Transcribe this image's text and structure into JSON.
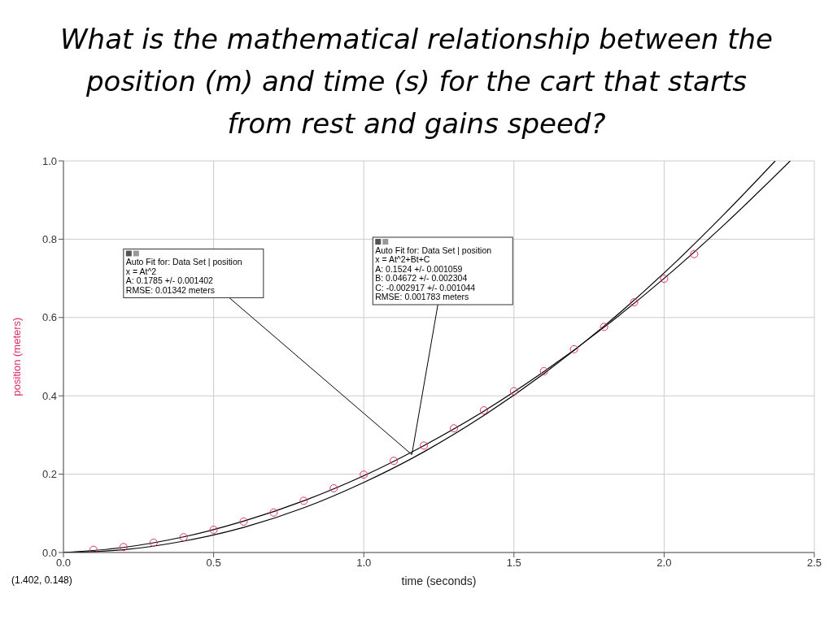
{
  "chart_data": {
    "type": "scatter",
    "title": "What is the mathematical relationship between the position (m) and time (s) for the cart that starts from rest and gains speed?",
    "xlabel": "time (seconds)",
    "ylabel": "position (meters)",
    "xlim": [
      0,
      2.5
    ],
    "xticks": [
      {
        "value": 0,
        "label": "0.0"
      },
      {
        "value": 0.5,
        "label": "0.5"
      },
      {
        "value": 1,
        "label": "1.0"
      },
      {
        "value": 1.5,
        "label": "1.5"
      },
      {
        "value": 2,
        "label": "2.0"
      },
      {
        "value": 2.5,
        "label": "2.5"
      }
    ],
    "ylim": [
      0,
      1
    ],
    "yticks": [
      {
        "value": 0,
        "label": "0.0"
      },
      {
        "value": 0.2,
        "label": "0.2"
      },
      {
        "value": 0.4,
        "label": "0.4"
      },
      {
        "value": 0.6,
        "label": "0.6"
      },
      {
        "value": 0.8,
        "label": "0.8"
      },
      {
        "value": 1,
        "label": "1.0"
      }
    ],
    "grid": true,
    "series": [
      {
        "color": "#e0306a",
        "marker": "circle",
        "x": [
          0.1,
          0.2,
          0.3,
          0.4,
          0.5,
          0.6,
          0.7,
          0.8,
          0.9,
          1.0,
          1.1,
          1.2,
          1.3,
          1.4,
          1.5,
          1.6,
          1.7,
          1.8,
          1.9,
          2.0,
          2.1
        ],
        "values": [
          0.007,
          0.014,
          0.025,
          0.039,
          0.058,
          0.079,
          0.102,
          0.132,
          0.164,
          0.199,
          0.234,
          0.273,
          0.317,
          0.363,
          0.412,
          0.463,
          0.519,
          0.576,
          0.639,
          0.699,
          0.762
        ]
      },
      {
        "type": "line",
        "color": "#000000",
        "marker": "none",
        "x": [
          0,
          0.2,
          0.4,
          0.6,
          0.8,
          1.0,
          1.2,
          1.4,
          1.6,
          1.8,
          2.0,
          2.2,
          2.37
        ],
        "values": [
          0,
          0.007,
          0.029,
          0.064,
          0.114,
          0.179,
          0.257,
          0.35,
          0.457,
          0.578,
          0.714,
          0.864,
          1.0
        ]
      },
      {
        "type": "line",
        "color": "#000000",
        "marker": "none",
        "x": [
          0,
          0.2,
          0.4,
          0.6,
          0.8,
          1.0,
          1.2,
          1.4,
          1.6,
          1.8,
          2.0,
          2.2,
          2.42
        ],
        "values": [
          0,
          0.013,
          0.04,
          0.08,
          0.132,
          0.196,
          0.273,
          0.361,
          0.462,
          0.575,
          0.7,
          0.837,
          1.0
        ]
      }
    ],
    "annotations": [
      {
        "text": "Auto Fit for: Data Set | position\nx = At^2\nA: 0.1785 +/- 0.001402\nRMSE: 0.01342 meters",
        "x": 1.16,
        "y": 0.25
      },
      {
        "text": "Auto Fit for: Data Set | position\nx = At^2+Bt+C\nA: 0.1524 +/- 0.001059\nB: 0.04672 +/- 0.002304\nC: -0.002917 +/- 0.001044\nRMSE: 0.001783 meters",
        "x": 1.16,
        "y": 0.25
      },
      "(1.402, 0.148)"
    ]
  }
}
